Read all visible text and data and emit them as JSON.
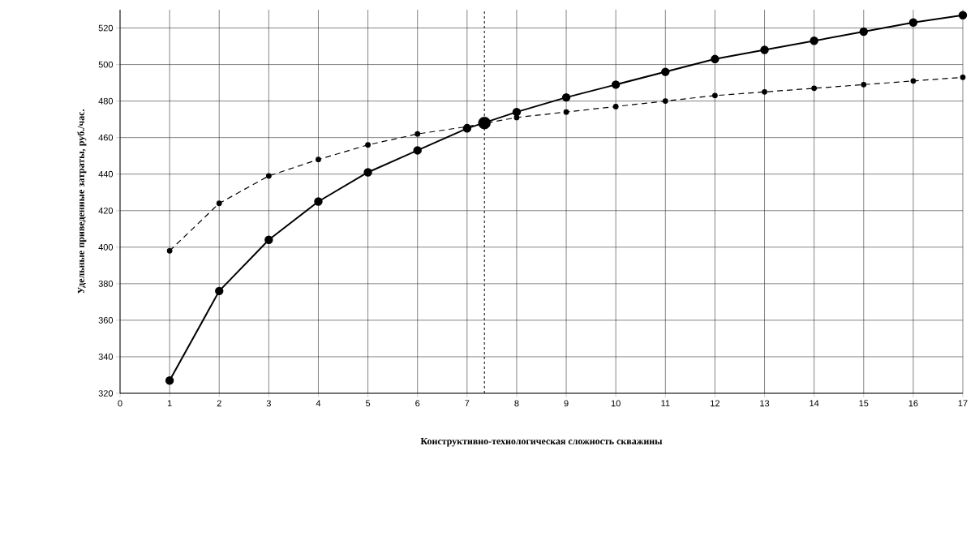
{
  "chart_data": {
    "type": "line",
    "xlabel": "Конструктивно-технологическая сложность скважины",
    "ylabel": "Удельные приведенные затраты, руб./час.",
    "x": [
      1,
      2,
      3,
      4,
      5,
      6,
      7,
      8,
      9,
      10,
      11,
      12,
      13,
      14,
      15,
      16,
      17
    ],
    "series": [
      {
        "color": "#000000",
        "line_style": "solid",
        "values": [
          327,
          376,
          404,
          425,
          441,
          453,
          465,
          474,
          482,
          489,
          496,
          503,
          508,
          513,
          518,
          523,
          527
        ]
      },
      {
        "color": "#000000",
        "line_style": "dashed",
        "values": [
          398,
          424,
          439,
          448,
          456,
          462,
          466,
          471,
          474,
          477,
          480,
          483,
          485,
          487,
          489,
          491,
          493
        ]
      },
      {
        "type": "scatter",
        "color": "#000000",
        "x": [
          7.35
        ],
        "values": [
          468
        ]
      }
    ],
    "ref_lines": [
      {
        "axis": "x",
        "value": 7.35,
        "line_style": "dotted",
        "color": "#000000"
      }
    ],
    "marker": "circle",
    "grid": true,
    "xlim": [
      0,
      17
    ],
    "xticks": [
      0,
      1,
      2,
      3,
      4,
      5,
      6,
      7,
      8,
      9,
      10,
      11,
      12,
      13,
      14,
      15,
      16,
      17
    ],
    "ylim": [
      320,
      530
    ],
    "yticks": [
      320,
      340,
      360,
      380,
      400,
      420,
      440,
      460,
      480,
      500,
      520
    ]
  }
}
